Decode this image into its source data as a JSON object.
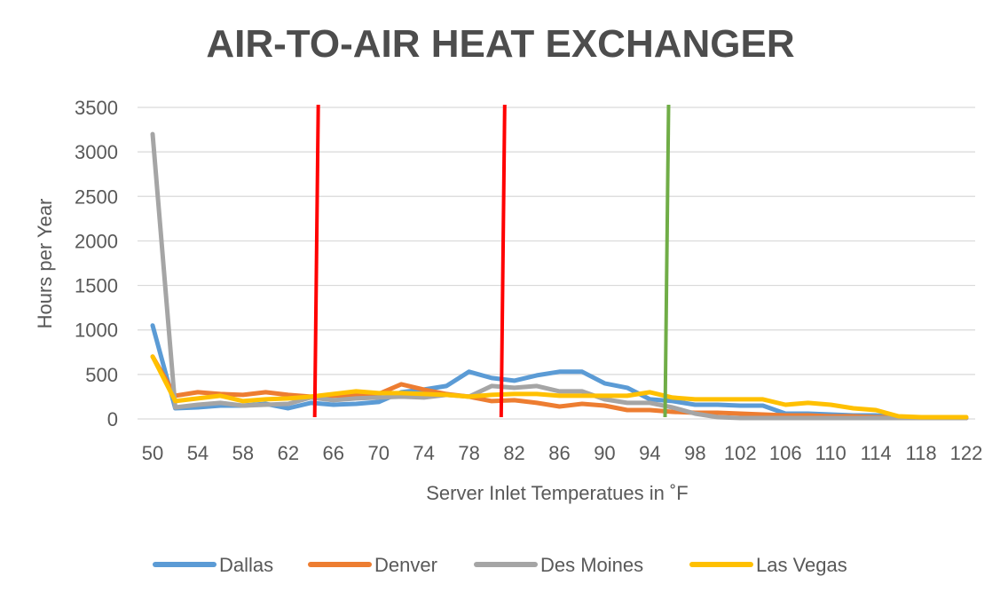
{
  "chart_data": {
    "type": "line",
    "title": "AIR-TO-AIR HEAT EXCHANGER",
    "xlabel": "Server Inlet Temperatues in ˚F",
    "ylabel": "Hours per Year",
    "ylim": [
      0,
      3500
    ],
    "yticks": [
      0,
      500,
      1000,
      1500,
      2000,
      2500,
      3000,
      3500
    ],
    "x_tick_labels": [
      "50",
      "54",
      "58",
      "62",
      "66",
      "70",
      "74",
      "78",
      "82",
      "86",
      "90",
      "94",
      "98",
      "102",
      "106",
      "110",
      "114",
      "118",
      "122"
    ],
    "grid": true,
    "legend_position": "bottom",
    "x": [
      50,
      52,
      54,
      56,
      58,
      60,
      62,
      64,
      66,
      68,
      70,
      72,
      74,
      76,
      78,
      80,
      82,
      84,
      86,
      88,
      90,
      92,
      94,
      96,
      98,
      100,
      102,
      104,
      106,
      108,
      110,
      112,
      114,
      116,
      118,
      120,
      122
    ],
    "series": [
      {
        "name": "Dallas",
        "color": "#5b9bd5",
        "values": [
          1050,
          120,
          130,
          150,
          150,
          170,
          120,
          180,
          160,
          170,
          190,
          300,
          330,
          370,
          530,
          460,
          430,
          490,
          530,
          530,
          400,
          350,
          220,
          200,
          160,
          160,
          150,
          150,
          60,
          60,
          50,
          40,
          40,
          20,
          10,
          10,
          10
        ]
      },
      {
        "name": "Denver",
        "color": "#ed7d31",
        "values": [
          700,
          260,
          300,
          280,
          270,
          300,
          270,
          250,
          260,
          270,
          280,
          390,
          330,
          280,
          250,
          200,
          210,
          180,
          140,
          170,
          150,
          100,
          100,
          80,
          70,
          70,
          60,
          50,
          40,
          40,
          30,
          30,
          20,
          20,
          10,
          10,
          10
        ]
      },
      {
        "name": "Des Moines",
        "color": "#a5a5a5",
        "values": [
          3200,
          130,
          160,
          180,
          150,
          160,
          170,
          240,
          210,
          230,
          240,
          250,
          240,
          270,
          250,
          370,
          350,
          370,
          310,
          310,
          220,
          180,
          180,
          130,
          60,
          20,
          10,
          10,
          10,
          10,
          10,
          10,
          10,
          10,
          10,
          10,
          10
        ]
      },
      {
        "name": "Las Vegas",
        "color": "#ffc000",
        "values": [
          700,
          200,
          230,
          260,
          200,
          220,
          230,
          250,
          280,
          310,
          290,
          290,
          280,
          270,
          250,
          270,
          280,
          280,
          260,
          260,
          260,
          260,
          300,
          240,
          220,
          220,
          220,
          220,
          160,
          180,
          160,
          120,
          100,
          30,
          20,
          20,
          20
        ]
      }
    ],
    "reference_lines": [
      {
        "x": 64.5,
        "color": "#ff0000"
      },
      {
        "x": 81,
        "color": "#ff0000"
      },
      {
        "x": 95.5,
        "color": "#70ad47"
      }
    ]
  }
}
